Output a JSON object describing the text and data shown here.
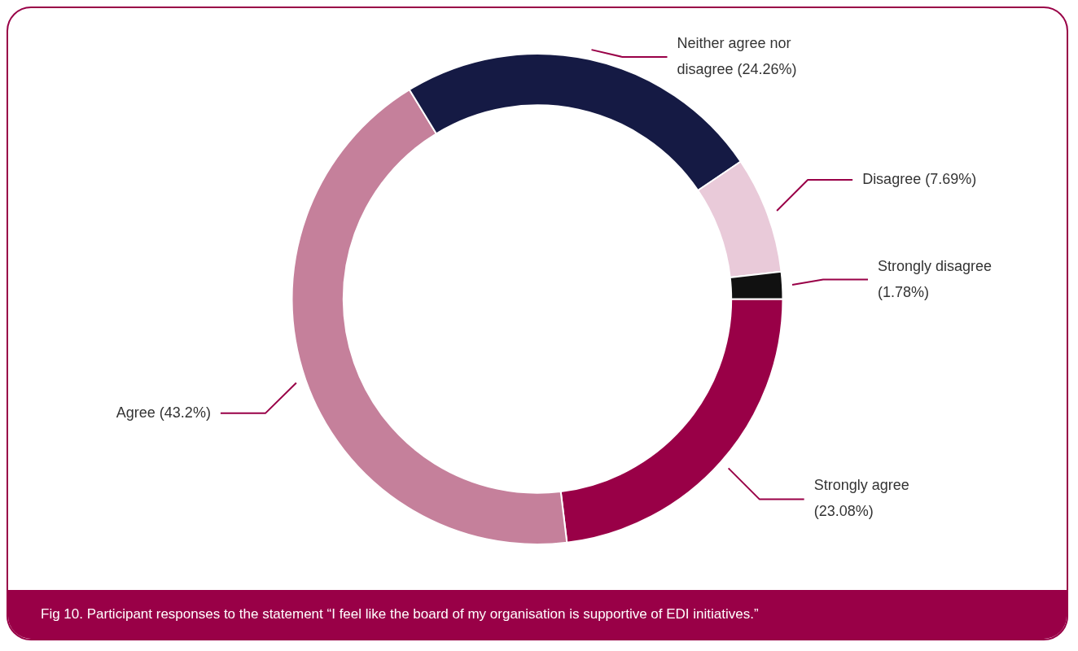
{
  "chart_data": {
    "type": "donut",
    "categories": [
      "Strongly agree",
      "Agree",
      "Neither agree nor disagree",
      "Disagree",
      "Strongly disagree"
    ],
    "values": [
      23.08,
      43.2,
      24.26,
      7.69,
      1.78
    ],
    "colors": [
      "#990047",
      "#c5809b",
      "#151a44",
      "#e9cad9",
      "#111111"
    ],
    "value_labels": [
      "(23.08%)",
      "(43.2%)",
      "(24.26%)",
      "(7.69%)",
      "(1.78%)"
    ],
    "legend": false,
    "annotations": [
      "Fig 10. Participant responses to the statement “I feel like the board of my organisation is supportive of EDI initiatives.”"
    ]
  }
}
